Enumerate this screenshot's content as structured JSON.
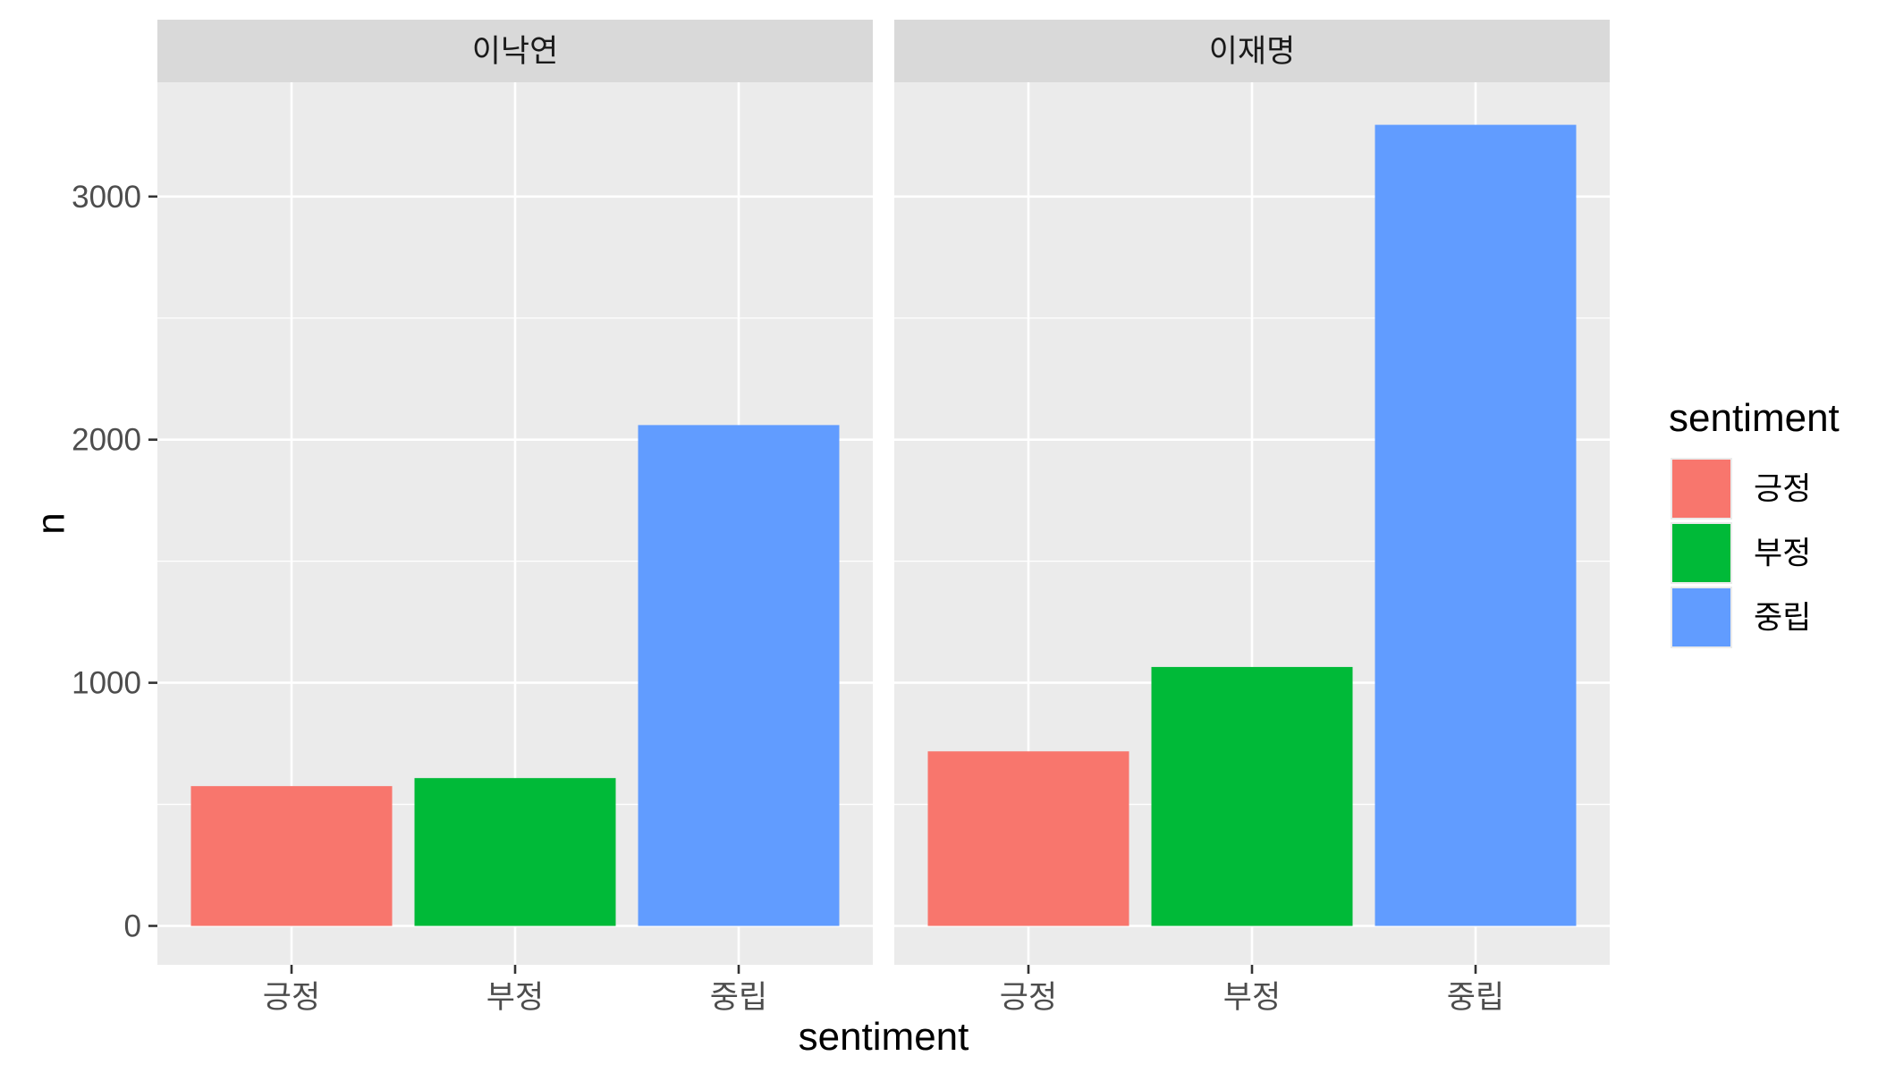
{
  "chart_data": {
    "type": "bar",
    "facet_by": "candidate",
    "panels": [
      {
        "strip": "이낙연",
        "categories": [
          "긍정",
          "부정",
          "중립"
        ],
        "values": [
          575,
          608,
          2060
        ]
      },
      {
        "strip": "이재명",
        "categories": [
          "긍정",
          "부정",
          "중립"
        ],
        "values": [
          718,
          1065,
          3295
        ]
      }
    ],
    "xlabel": "sentiment",
    "ylabel": "n",
    "ylim": [
      -160,
      3470
    ],
    "y_ticks": [
      0,
      1000,
      2000,
      3000
    ],
    "y_tick_labels": [
      "0",
      "1000",
      "2000",
      "3000"
    ],
    "y_minor_ticks": [
      500,
      1500,
      2500,
      3500
    ],
    "grid": true,
    "legend": {
      "title": "sentiment",
      "position": "right",
      "items": [
        {
          "label": "긍정",
          "color": "#F8766D"
        },
        {
          "label": "부정",
          "color": "#00BA38"
        },
        {
          "label": "중립",
          "color": "#619CFF"
        }
      ]
    }
  }
}
